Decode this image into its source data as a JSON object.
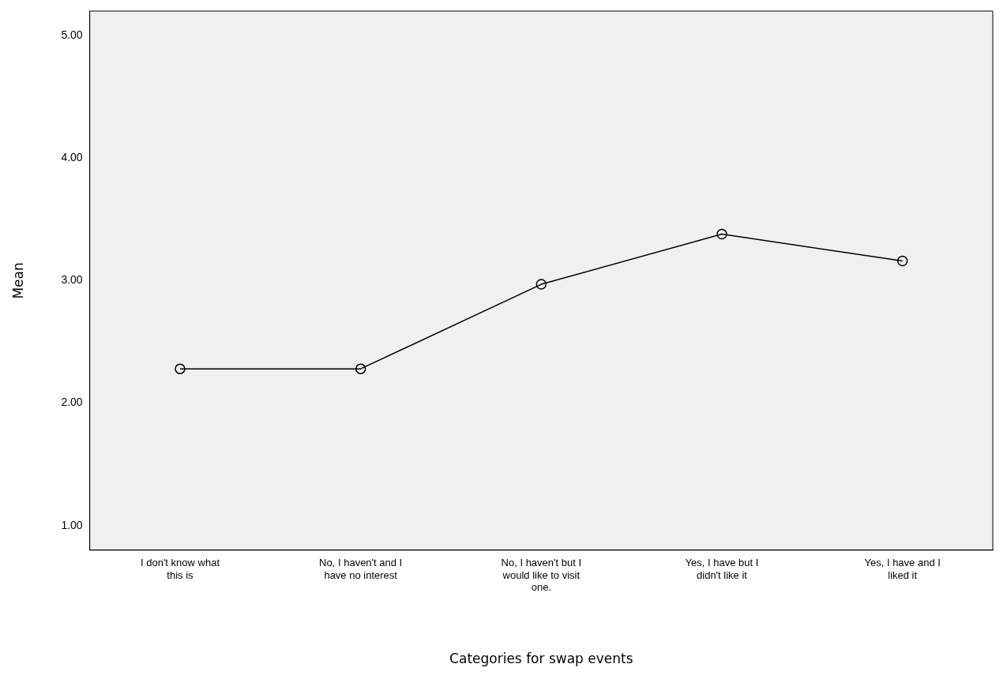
{
  "chart_data": {
    "type": "line",
    "xlabel": "Categories for swap events",
    "ylabel": "Mean",
    "categories": [
      "I don't know what this is",
      "No, I haven't and I have no interest",
      "No, I haven't but I would like to visit one.",
      "Yes, I have but I didn't like it",
      "Yes, I have and I liked it"
    ],
    "series": [
      {
        "color": "#000000",
        "values": [
          2.28,
          2.28,
          2.97,
          3.38,
          3.16
        ]
      }
    ],
    "ylim": [
      0.8,
      5.2
    ],
    "yticks": [
      {
        "value": 1,
        "label": "1.00"
      },
      {
        "value": 2,
        "label": "2.00"
      },
      {
        "value": 3,
        "label": "3.00"
      },
      {
        "value": 4,
        "label": "4.00"
      },
      {
        "value": 5,
        "label": "5.00"
      }
    ],
    "grid": false,
    "legend": false,
    "marker": "circle",
    "line_style": "solid"
  }
}
